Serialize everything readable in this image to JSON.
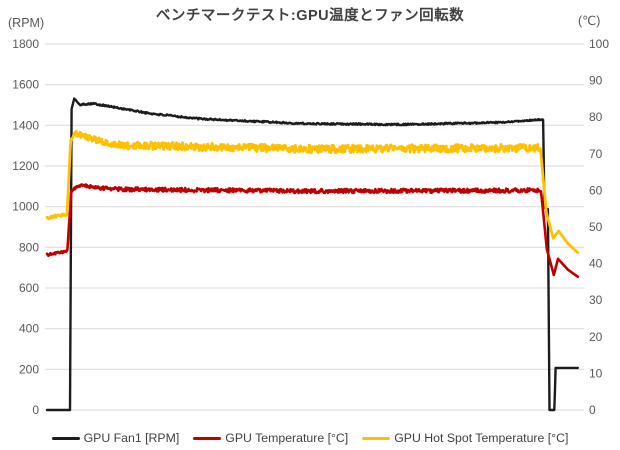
{
  "chart_data": {
    "type": "line",
    "title": "ベンチマークテスト:GPU温度とファン回転数",
    "left_axis": {
      "unit_label": "(RPM)",
      "min": 0,
      "max": 1800,
      "tick_step": 200,
      "ticks": [
        1800,
        1600,
        1400,
        1200,
        1000,
        800,
        600,
        400,
        200,
        0
      ]
    },
    "right_axis": {
      "unit_label": "(℃)",
      "min": 0,
      "max": 100,
      "tick_step": 10,
      "ticks": [
        100,
        90,
        80,
        70,
        60,
        50,
        40,
        30,
        20,
        10,
        0
      ]
    },
    "grid": true,
    "legend_position": "bottom",
    "segment_format": "[x_start_percent, x_end_percent, y_start, y_end, noise_amplitude]",
    "draw_order": [
      0,
      1,
      2
    ],
    "series": [
      {
        "name": "GPU Fan1 [RPM]",
        "axis": "left",
        "color": "#1c1c1c",
        "line_width": 2.4,
        "segments": [
          [
            0,
            4.3,
            0,
            0,
            0
          ],
          [
            4.3,
            4.6,
            0,
            1480,
            0
          ],
          [
            4.6,
            5.1,
            1480,
            1532,
            0
          ],
          [
            5.1,
            6.1,
            1532,
            1501,
            3
          ],
          [
            6.1,
            8.5,
            1501,
            1508,
            4
          ],
          [
            8.5,
            19.3,
            1508,
            1458,
            4
          ],
          [
            19.3,
            28.7,
            1458,
            1432,
            4
          ],
          [
            28.7,
            47.4,
            1432,
            1409,
            4
          ],
          [
            47.4,
            66.0,
            1409,
            1404,
            4
          ],
          [
            66.0,
            84.8,
            1404,
            1414,
            4
          ],
          [
            84.8,
            92.9,
            1414,
            1429,
            3
          ],
          [
            92.9,
            93.15,
            1429,
            995,
            0
          ],
          [
            93.15,
            93.8,
            995,
            988,
            0
          ],
          [
            93.8,
            94.1,
            988,
            0,
            0
          ],
          [
            94.1,
            95.0,
            0,
            0,
            0
          ],
          [
            95.0,
            95.25,
            0,
            207,
            0
          ],
          [
            95.25,
            99.4,
            207,
            207,
            0
          ]
        ]
      },
      {
        "name": "GPU Temperature [°C]",
        "axis": "right",
        "color": "#c00000",
        "line_width": 2.6,
        "segments": [
          [
            0,
            1.8,
            42.4,
            42.9,
            0.35
          ],
          [
            1.8,
            3.8,
            42.9,
            43.4,
            0.35
          ],
          [
            3.8,
            4.55,
            43.4,
            59.8,
            0
          ],
          [
            4.55,
            6.0,
            59.8,
            61.4,
            0.3
          ],
          [
            6.0,
            12.5,
            61.4,
            60.3,
            0.5
          ],
          [
            12.5,
            50.0,
            60.3,
            59.8,
            0.55
          ],
          [
            50.0,
            92.5,
            59.8,
            60.0,
            0.55
          ],
          [
            92.5,
            93.6,
            60.0,
            44.0,
            0
          ],
          [
            93.6,
            94.9,
            44.0,
            36.9,
            0
          ],
          [
            94.9,
            95.7,
            36.9,
            41.3,
            0
          ],
          [
            95.7,
            97.5,
            41.3,
            38.4,
            0
          ],
          [
            97.5,
            99.4,
            38.4,
            36.4,
            0
          ]
        ]
      },
      {
        "name": "GPU Hot Spot Temperature [°C]",
        "axis": "right",
        "color": "#ffc000",
        "line_width": 2.8,
        "segments": [
          [
            0,
            1.8,
            52.5,
            53.0,
            0.35
          ],
          [
            1.8,
            3.75,
            53.0,
            53.5,
            0.35
          ],
          [
            3.75,
            4.45,
            53.5,
            73.8,
            0
          ],
          [
            4.45,
            5.2,
            73.8,
            75.6,
            0.3
          ],
          [
            5.2,
            12.5,
            75.6,
            72.4,
            0.8
          ],
          [
            12.5,
            50.0,
            72.4,
            71.3,
            1.05
          ],
          [
            50.0,
            92.4,
            71.3,
            71.6,
            1.05
          ],
          [
            92.4,
            93.5,
            71.6,
            54.0,
            0
          ],
          [
            93.5,
            94.8,
            54.0,
            46.9,
            0
          ],
          [
            94.8,
            95.8,
            46.9,
            48.9,
            0
          ],
          [
            95.8,
            97.6,
            48.9,
            45.4,
            0
          ],
          [
            97.6,
            99.4,
            45.4,
            43.0,
            0
          ]
        ]
      }
    ]
  },
  "styles": {
    "grid_color": "#d9d9d9",
    "tick_label_color": "#595959",
    "title_color": "#404040",
    "legend_text_color": "#3f3f3f",
    "background": "#ffffff"
  }
}
